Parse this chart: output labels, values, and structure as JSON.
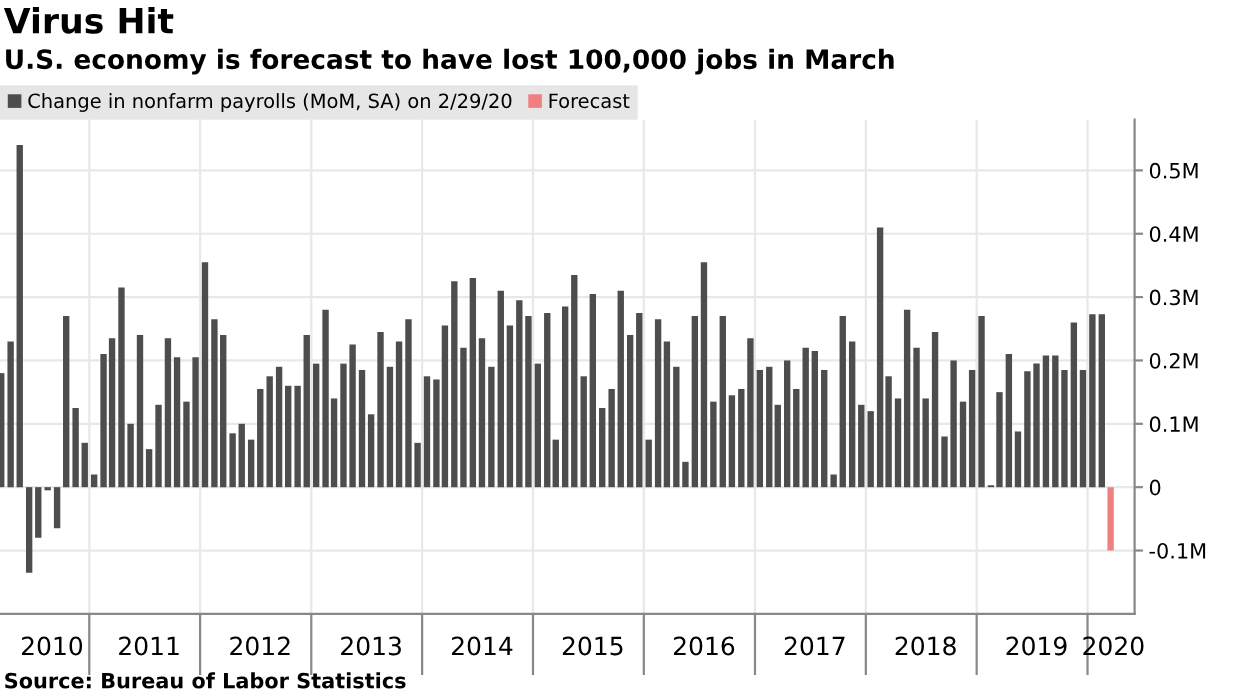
{
  "chart_data": {
    "type": "bar",
    "title": "Virus Hit",
    "subtitle": "U.S. economy is forecast to have lost 100,000 jobs in March",
    "x": [
      "2010-03",
      "2010-04",
      "2010-05",
      "2010-06",
      "2010-07",
      "2010-08",
      "2010-09",
      "2010-10",
      "2010-11",
      "2010-12",
      "2011-01",
      "2011-02",
      "2011-03",
      "2011-04",
      "2011-05",
      "2011-06",
      "2011-07",
      "2011-08",
      "2011-09",
      "2011-10",
      "2011-11",
      "2011-12",
      "2012-01",
      "2012-02",
      "2012-03",
      "2012-04",
      "2012-05",
      "2012-06",
      "2012-07",
      "2012-08",
      "2012-09",
      "2012-10",
      "2012-11",
      "2012-12",
      "2013-01",
      "2013-02",
      "2013-03",
      "2013-04",
      "2013-05",
      "2013-06",
      "2013-07",
      "2013-08",
      "2013-09",
      "2013-10",
      "2013-11",
      "2013-12",
      "2014-01",
      "2014-02",
      "2014-03",
      "2014-04",
      "2014-05",
      "2014-06",
      "2014-07",
      "2014-08",
      "2014-09",
      "2014-10",
      "2014-11",
      "2014-12",
      "2015-01",
      "2015-02",
      "2015-03",
      "2015-04",
      "2015-05",
      "2015-06",
      "2015-07",
      "2015-08",
      "2015-09",
      "2015-10",
      "2015-11",
      "2015-12",
      "2016-01",
      "2016-02",
      "2016-03",
      "2016-04",
      "2016-05",
      "2016-06",
      "2016-07",
      "2016-08",
      "2016-09",
      "2016-10",
      "2016-11",
      "2016-12",
      "2017-01",
      "2017-02",
      "2017-03",
      "2017-04",
      "2017-05",
      "2017-06",
      "2017-07",
      "2017-08",
      "2017-09",
      "2017-10",
      "2017-11",
      "2017-12",
      "2018-01",
      "2018-02",
      "2018-03",
      "2018-04",
      "2018-05",
      "2018-06",
      "2018-07",
      "2018-08",
      "2018-09",
      "2018-10",
      "2018-11",
      "2018-12",
      "2019-01",
      "2019-02",
      "2019-03",
      "2019-04",
      "2019-05",
      "2019-06",
      "2019-07",
      "2019-08",
      "2019-09",
      "2019-10",
      "2019-11",
      "2019-12",
      "2020-01",
      "2020-02",
      "2020-03"
    ],
    "series": [
      {
        "name": "Change in nonfarm payrolls (MoM, SA) on 2/29/20",
        "color": "#4d4d4d",
        "values": [
          0.18,
          0.23,
          0.54,
          -0.135,
          -0.08,
          -0.005,
          -0.065,
          0.27,
          0.125,
          0.07,
          0.02,
          0.21,
          0.235,
          0.315,
          0.1,
          0.24,
          0.06,
          0.13,
          0.235,
          0.205,
          0.135,
          0.205,
          0.355,
          0.265,
          0.24,
          0.085,
          0.1,
          0.075,
          0.155,
          0.175,
          0.19,
          0.16,
          0.16,
          0.24,
          0.195,
          0.28,
          0.14,
          0.195,
          0.225,
          0.185,
          0.115,
          0.245,
          0.19,
          0.23,
          0.265,
          0.07,
          0.175,
          0.17,
          0.255,
          0.325,
          0.22,
          0.33,
          0.235,
          0.19,
          0.31,
          0.255,
          0.295,
          0.27,
          0.195,
          0.275,
          0.075,
          0.285,
          0.335,
          0.175,
          0.305,
          0.125,
          0.155,
          0.31,
          0.24,
          0.275,
          0.075,
          0.265,
          0.23,
          0.19,
          0.04,
          0.27,
          0.355,
          0.135,
          0.27,
          0.145,
          0.155,
          0.235,
          0.185,
          0.19,
          0.13,
          0.2,
          0.155,
          0.22,
          0.215,
          0.185,
          0.02,
          0.27,
          0.23,
          0.13,
          0.12,
          0.41,
          0.175,
          0.14,
          0.28,
          0.22,
          0.14,
          0.245,
          0.08,
          0.2,
          0.135,
          0.185,
          0.27,
          0.003,
          0.15,
          0.21,
          0.088,
          0.183,
          0.195,
          0.208,
          0.208,
          0.185,
          0.26,
          0.185,
          0.273,
          0.273,
          null
        ]
      },
      {
        "name": "Forecast",
        "color": "#f08080",
        "values": [
          null,
          null,
          null,
          null,
          null,
          null,
          null,
          null,
          null,
          null,
          null,
          null,
          null,
          null,
          null,
          null,
          null,
          null,
          null,
          null,
          null,
          null,
          null,
          null,
          null,
          null,
          null,
          null,
          null,
          null,
          null,
          null,
          null,
          null,
          null,
          null,
          null,
          null,
          null,
          null,
          null,
          null,
          null,
          null,
          null,
          null,
          null,
          null,
          null,
          null,
          null,
          null,
          null,
          null,
          null,
          null,
          null,
          null,
          null,
          null,
          null,
          null,
          null,
          null,
          null,
          null,
          null,
          null,
          null,
          null,
          null,
          null,
          null,
          null,
          null,
          null,
          null,
          null,
          null,
          null,
          null,
          null,
          null,
          null,
          null,
          null,
          null,
          null,
          null,
          null,
          null,
          null,
          null,
          null,
          null,
          null,
          null,
          null,
          null,
          null,
          null,
          null,
          null,
          null,
          null,
          null,
          null,
          null,
          null,
          null,
          null,
          null,
          null,
          null,
          null,
          null,
          null,
          null,
          null,
          null,
          -0.1
        ]
      }
    ],
    "xlim": [
      "2010-02-25",
      "2020-05-19"
    ],
    "xticks": [
      {
        "value": "2010-08-15",
        "label": "2010"
      },
      {
        "value": "2010-12-16",
        "label": null
      },
      {
        "value": "2011-07-01",
        "label": "2011"
      },
      {
        "value": "2011-12-16",
        "label": null
      },
      {
        "value": "2012-07-01",
        "label": "2012"
      },
      {
        "value": "2012-12-16",
        "label": null
      },
      {
        "value": "2013-07-01",
        "label": "2013"
      },
      {
        "value": "2013-12-16",
        "label": null
      },
      {
        "value": "2014-07-01",
        "label": "2014"
      },
      {
        "value": "2014-12-16",
        "label": null
      },
      {
        "value": "2015-07-01",
        "label": "2015"
      },
      {
        "value": "2015-12-16",
        "label": null
      },
      {
        "value": "2016-07-01",
        "label": "2016"
      },
      {
        "value": "2016-12-16",
        "label": null
      },
      {
        "value": "2017-07-01",
        "label": "2017"
      },
      {
        "value": "2017-12-16",
        "label": null
      },
      {
        "value": "2018-07-01",
        "label": "2018"
      },
      {
        "value": "2018-12-16",
        "label": null
      },
      {
        "value": "2019-07-01",
        "label": "2019"
      },
      {
        "value": "2019-12-16",
        "label": null
      },
      {
        "value": "2020-03-10",
        "label": "2020"
      }
    ],
    "ylim": [
      -0.2,
      0.58
    ],
    "yticks": [
      {
        "value": -0.1,
        "label": "-0.1M"
      },
      0,
      {
        "value": 0.1,
        "label": "0.1M"
      },
      {
        "value": 0.2,
        "label": "0.2M"
      },
      {
        "value": 0.3,
        "label": "0.3M"
      },
      {
        "value": 0.4,
        "label": "0.4M"
      },
      {
        "value": 0.5,
        "label": "0.5M"
      }
    ],
    "grid": true,
    "legend": "top left",
    "annotations": [
      "Source: Bureau of Labor Statistics"
    ]
  }
}
